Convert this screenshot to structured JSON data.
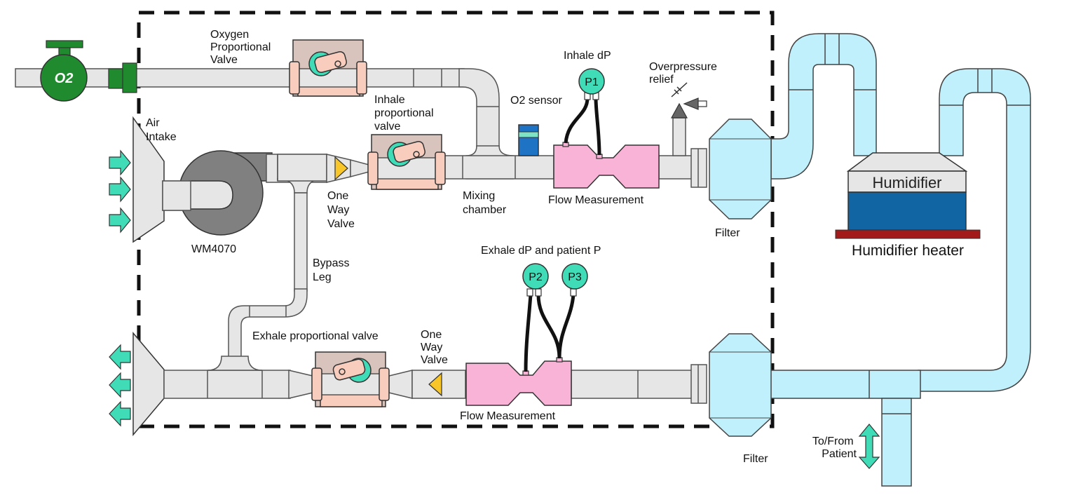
{
  "labels": {
    "oxygen_valve": [
      "Oxygen",
      "Proportional",
      "Valve"
    ],
    "o2_badge": "O2",
    "air_intake": [
      "Air",
      "Intake"
    ],
    "blower": "WM4070",
    "inhale_valve": [
      "Inhale",
      "proportional",
      "valve"
    ],
    "one_way_top": [
      "One",
      "Way",
      "Valve"
    ],
    "o2_sensor": "O2 sensor",
    "mixing": [
      "Mixing",
      "chamber"
    ],
    "inhale_dp": "Inhale dP",
    "overpressure": [
      "Overpressure",
      "relief"
    ],
    "flow_top": "Flow Measurement",
    "filter_top": "Filter",
    "humidifier": "Humidifier",
    "humidifier_heater": "Humidifier heater",
    "bypass": [
      "Bypass",
      "Leg"
    ],
    "exhale_dp": "Exhale dP and patient P",
    "exhale_valve": "Exhale proportional valve",
    "one_way_bottom": [
      "One",
      "Way",
      "Valve"
    ],
    "flow_bottom": "Flow Measurement",
    "filter_bottom": "Filter",
    "to_from_patient": [
      "To/From",
      "Patient"
    ]
  },
  "gauges": {
    "p1": "P1",
    "p2": "P2",
    "p3": "P3"
  },
  "colors": {
    "pipe": "#e6e6e6",
    "patient_pipe": "#bff0fb",
    "o2_green": "#1f8a2e",
    "gauge_teal": "#3fdcb7",
    "flow_pink": "#f9b3d6",
    "humidifier_blue": "#1265a3",
    "heater_red": "#a31a1a",
    "valve_yellow": "#f9c62a"
  }
}
